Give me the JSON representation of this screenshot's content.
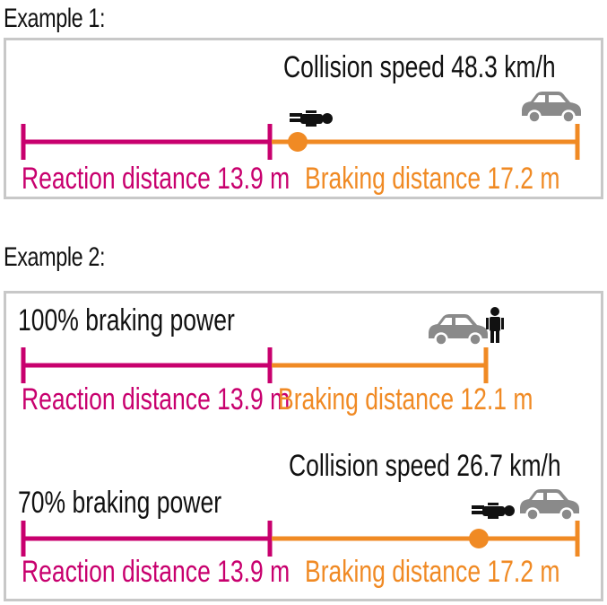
{
  "example1": {
    "heading": "Example 1:",
    "collision_label": "Collision speed 48.3 km/h",
    "reaction_label": "Reaction distance 13.9 m",
    "braking_label": "Braking distance 17.2 m"
  },
  "example2": {
    "heading": "Example 2:",
    "case100": {
      "title": "100% braking power",
      "reaction_label": "Reaction distance 13.9 m",
      "braking_label": "Braking distance 12.1 m"
    },
    "case70": {
      "title": "70% braking power",
      "collision_label": "Collision speed 26.7 km/h",
      "reaction_label": "Reaction distance 13.9 m",
      "braking_label": "Braking distance 17.2 m"
    }
  },
  "colors": {
    "reaction": "#c8006e",
    "braking": "#f08a24",
    "car": "#8a8a8a",
    "person": "#111111",
    "border": "#c8c8c8"
  },
  "icons": [
    "car-icon",
    "person-lying-icon",
    "person-standing-icon",
    "impact-dot"
  ]
}
